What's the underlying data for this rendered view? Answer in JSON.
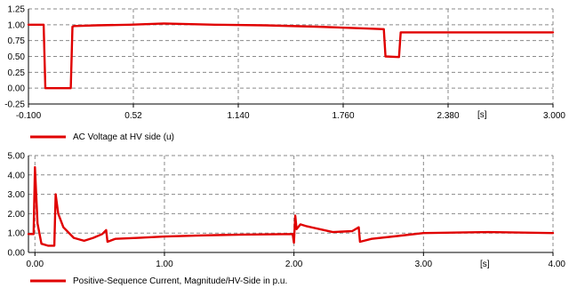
{
  "chart_data": [
    {
      "type": "line",
      "x_unit": "[s]",
      "xlim": [
        -0.1,
        3.0
      ],
      "ylim": [
        -0.25,
        1.25
      ],
      "x_ticks": [
        {
          "value": -0.1,
          "label": "-0.100"
        },
        {
          "value": 0.52,
          "label": "0.52"
        },
        {
          "value": 1.14,
          "label": "1.140"
        },
        {
          "value": 1.76,
          "label": "1.760"
        },
        {
          "value": 2.38,
          "label": "2.380"
        },
        {
          "value": 3.0,
          "label": "3.000"
        }
      ],
      "y_ticks": [
        {
          "value": 1.25,
          "label": "1.25"
        },
        {
          "value": 1.0,
          "label": "1.00"
        },
        {
          "value": 0.75,
          "label": "0.75"
        },
        {
          "value": 0.5,
          "label": "0.50"
        },
        {
          "value": 0.25,
          "label": "0.25"
        },
        {
          "value": 0.0,
          "label": "0.00"
        },
        {
          "value": -0.25,
          "label": "-0.25"
        }
      ],
      "grid": true,
      "legend_position": "bottom-left",
      "series": [
        {
          "name": "AC Voltage at HV side (u)",
          "color": "#e00000",
          "points": [
            [
              -0.1,
              1.0
            ],
            [
              -0.01,
              1.0
            ],
            [
              0.0,
              0.0
            ],
            [
              0.15,
              0.0
            ],
            [
              0.16,
              0.97
            ],
            [
              0.17,
              0.98
            ],
            [
              0.3,
              0.99
            ],
            [
              0.5,
              1.0
            ],
            [
              0.7,
              1.02
            ],
            [
              1.0,
              1.0
            ],
            [
              1.3,
              0.99
            ],
            [
              1.6,
              0.97
            ],
            [
              1.9,
              0.94
            ],
            [
              2.0,
              0.93
            ],
            [
              2.01,
              0.5
            ],
            [
              2.09,
              0.49
            ],
            [
              2.1,
              0.88
            ],
            [
              2.4,
              0.88
            ],
            [
              2.7,
              0.88
            ],
            [
              3.0,
              0.88
            ]
          ]
        }
      ]
    },
    {
      "type": "line",
      "x_unit": "[s]",
      "xlim": [
        -0.05,
        4.0
      ],
      "ylim": [
        0.0,
        5.0
      ],
      "x_ticks": [
        {
          "value": 0.0,
          "label": "0.00"
        },
        {
          "value": 1.0,
          "label": "1.00"
        },
        {
          "value": 2.0,
          "label": "2.00"
        },
        {
          "value": 3.0,
          "label": "3.00"
        },
        {
          "value": 4.0,
          "label": "4.00"
        }
      ],
      "y_ticks": [
        {
          "value": 5.0,
          "label": "5.00"
        },
        {
          "value": 4.0,
          "label": "4.00"
        },
        {
          "value": 3.0,
          "label": "3.00"
        },
        {
          "value": 2.0,
          "label": "2.00"
        },
        {
          "value": 1.0,
          "label": "1.00"
        },
        {
          "value": 0.0,
          "label": "0.00"
        }
      ],
      "grid": true,
      "legend_position": "bottom-left",
      "series": [
        {
          "name": "Positive-Sequence Current, Magnitude/HV-Side in p.u.",
          "color": "#e00000",
          "points": [
            [
              -0.05,
              0.95
            ],
            [
              -0.01,
              0.95
            ],
            [
              0.0,
              4.4
            ],
            [
              0.02,
              1.5
            ],
            [
              0.05,
              0.45
            ],
            [
              0.1,
              0.35
            ],
            [
              0.15,
              0.35
            ],
            [
              0.16,
              3.0
            ],
            [
              0.18,
              2.0
            ],
            [
              0.22,
              1.3
            ],
            [
              0.3,
              0.75
            ],
            [
              0.38,
              0.6
            ],
            [
              0.45,
              0.75
            ],
            [
              0.52,
              0.95
            ],
            [
              0.55,
              1.15
            ],
            [
              0.56,
              0.55
            ],
            [
              0.62,
              0.7
            ],
            [
              0.8,
              0.75
            ],
            [
              1.0,
              0.82
            ],
            [
              1.3,
              0.88
            ],
            [
              1.6,
              0.92
            ],
            [
              1.99,
              0.95
            ],
            [
              2.0,
              0.5
            ],
            [
              2.01,
              1.9
            ],
            [
              2.02,
              1.2
            ],
            [
              2.05,
              1.45
            ],
            [
              2.1,
              1.35
            ],
            [
              2.3,
              1.05
            ],
            [
              2.45,
              1.1
            ],
            [
              2.5,
              1.3
            ],
            [
              2.51,
              0.55
            ],
            [
              2.6,
              0.7
            ],
            [
              2.8,
              0.85
            ],
            [
              3.0,
              1.0
            ],
            [
              3.5,
              1.05
            ],
            [
              4.0,
              1.0
            ]
          ]
        }
      ]
    }
  ]
}
